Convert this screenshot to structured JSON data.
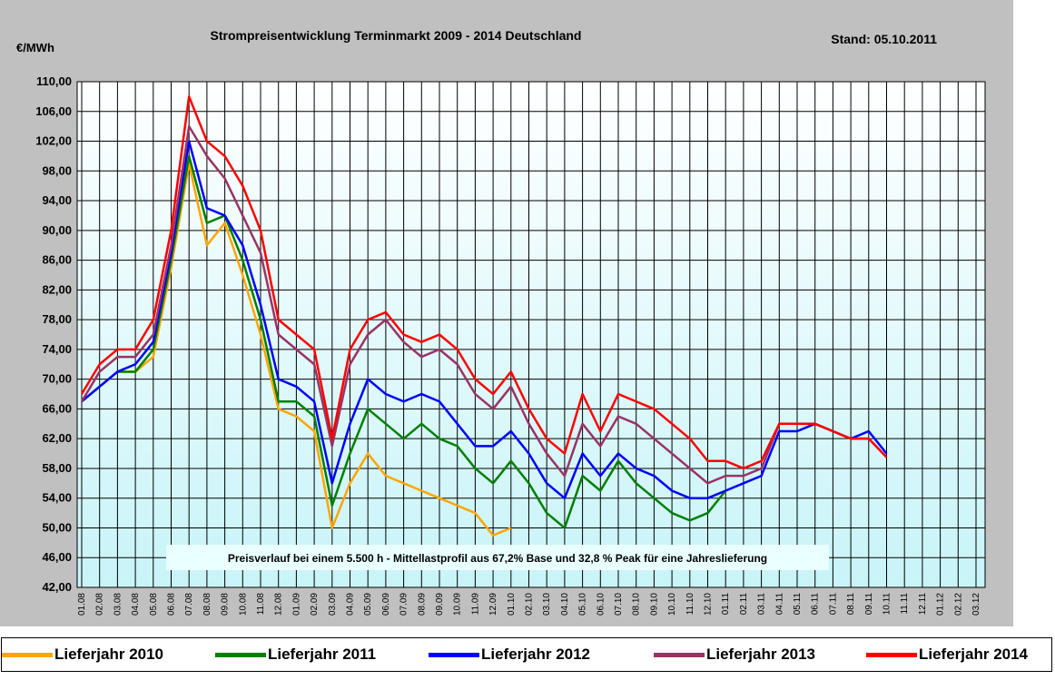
{
  "chart_data": {
    "type": "line",
    "title": "Strompreisentwicklung Terminmarkt 2009 - 2014 Deutschland",
    "subtitle": "Stand:  05.10.2011",
    "y_label": "€/MWh",
    "annotation": "Preisverlauf bei einem 5.500 h - Mittellastprofil aus 67,2% Base und 32,8 % Peak für eine Jahreslieferung",
    "categories": [
      "01.08",
      "02.08",
      "03.08",
      "04.08",
      "05.08",
      "06.08",
      "07.08",
      "08.08",
      "09.08",
      "10.08",
      "11.08",
      "12.08",
      "01.09",
      "02.09",
      "03.09",
      "04.09",
      "05.09",
      "06.09",
      "07.09",
      "08.09",
      "09.09",
      "10.09",
      "11.09",
      "12.09",
      "01.10",
      "02.10",
      "03.10",
      "04.10",
      "05.10",
      "06.10",
      "07.10",
      "08.10",
      "09.10",
      "10.10",
      "11.10",
      "12.10",
      "01.11",
      "02.11",
      "03.11",
      "04.11",
      "05.11",
      "06.11",
      "07.11",
      "08.11",
      "09.11",
      "10.11",
      "11.11",
      "12.11",
      "01.12",
      "02.12",
      "03.12"
    ],
    "series": [
      {
        "name": "Lieferjahr 2010",
        "color": "#ffa500",
        "values": [
          67,
          69,
          71,
          71,
          73,
          85,
          99,
          88,
          91,
          84,
          76,
          66,
          65,
          63,
          50,
          56,
          60,
          57,
          56,
          55,
          54,
          53,
          52,
          49,
          50,
          null,
          null,
          null,
          null,
          null,
          null,
          null,
          null,
          null,
          null,
          null,
          null,
          null,
          null,
          null,
          null,
          null,
          null,
          null,
          null,
          null,
          null,
          null,
          null,
          null,
          null
        ]
      },
      {
        "name": "Lieferjahr 2011",
        "color": "#008000",
        "values": [
          67,
          69,
          71,
          71,
          74,
          86,
          100,
          91,
          92,
          86,
          78,
          67,
          67,
          65,
          53,
          60,
          66,
          64,
          62,
          64,
          62,
          61,
          58,
          56,
          59,
          56,
          52,
          50,
          57,
          55,
          59,
          56,
          54,
          52,
          51,
          52,
          55,
          null,
          null,
          null,
          null,
          null,
          null,
          null,
          null,
          null,
          null,
          null,
          null,
          null,
          null
        ]
      },
      {
        "name": "Lieferjahr 2012",
        "color": "#0000ff",
        "values": [
          67,
          69,
          71,
          72,
          75,
          87,
          102,
          93,
          92,
          88,
          80,
          70,
          69,
          67,
          56,
          64,
          70,
          68,
          67,
          68,
          67,
          64,
          61,
          61,
          63,
          60,
          56,
          54,
          60,
          57,
          60,
          58,
          57,
          55,
          54,
          54,
          55,
          56,
          57,
          63,
          63,
          64,
          63,
          62,
          63,
          60,
          null,
          null,
          null,
          null,
          null
        ]
      },
      {
        "name": "Lieferjahr 2013",
        "color": "#993366",
        "values": [
          67,
          71,
          73,
          73,
          76,
          88,
          104,
          100,
          97,
          92,
          87,
          76,
          74,
          72,
          61,
          72,
          76,
          78,
          75,
          73,
          74,
          72,
          68,
          66,
          69,
          64,
          60,
          57,
          64,
          61,
          65,
          64,
          62,
          60,
          58,
          56,
          57,
          57,
          58,
          64,
          64,
          64,
          63,
          62,
          62,
          59.5,
          null,
          null,
          null,
          null,
          null
        ]
      },
      {
        "name": "Lieferjahr 2014",
        "color": "#ff0000",
        "values": [
          68,
          72,
          74,
          74,
          78,
          90,
          108,
          102,
          100,
          96,
          90,
          78,
          76,
          74,
          62,
          74,
          78,
          79,
          76,
          75,
          76,
          74,
          70,
          68,
          71,
          66,
          62,
          60,
          68,
          63,
          68,
          67,
          66,
          64,
          62,
          59,
          59,
          58,
          59,
          64,
          64,
          64,
          63,
          62,
          62,
          59.5,
          null,
          null,
          null,
          null,
          null
        ]
      }
    ],
    "ylim": [
      42,
      110
    ],
    "yticks": [
      {
        "value": 42,
        "label": "42,00"
      },
      {
        "value": 46,
        "label": "46,00"
      },
      {
        "value": 50,
        "label": "50,00"
      },
      {
        "value": 54,
        "label": "54,00"
      },
      {
        "value": 58,
        "label": "58,00"
      },
      {
        "value": 62,
        "label": "62,00"
      },
      {
        "value": 66,
        "label": "66,00"
      },
      {
        "value": 70,
        "label": "70,00"
      },
      {
        "value": 74,
        "label": "74,00"
      },
      {
        "value": 78,
        "label": "78,00"
      },
      {
        "value": 82,
        "label": "82,00"
      },
      {
        "value": 86,
        "label": "86,00"
      },
      {
        "value": 90,
        "label": "90,00"
      },
      {
        "value": 94,
        "label": "94,00"
      },
      {
        "value": 98,
        "label": "98,00"
      },
      {
        "value": 102,
        "label": "102,00"
      },
      {
        "value": 106,
        "label": "106,00"
      },
      {
        "value": 110,
        "label": "110,00"
      }
    ],
    "grid": true
  }
}
